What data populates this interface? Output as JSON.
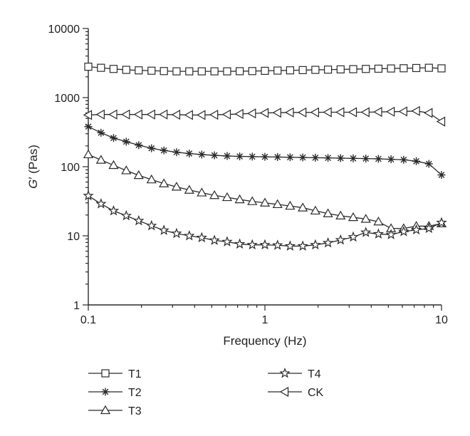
{
  "chart_data": {
    "type": "line",
    "x_scale": "log",
    "y_scale": "log",
    "xlabel": "Frequency (Hz)",
    "ylabel_main": "G",
    "ylabel_prime": "′",
    "ylabel_unit": " (Pas)",
    "xlim": [
      0.1,
      10
    ],
    "ylim": [
      1,
      10000
    ],
    "x_ticks": [
      {
        "value": 0.1,
        "label": "0.1"
      },
      {
        "value": 1,
        "label": "1"
      },
      {
        "value": 10,
        "label": "10"
      }
    ],
    "y_ticks": [
      {
        "value": 1,
        "label": "1"
      },
      {
        "value": 10,
        "label": "10"
      },
      {
        "value": 100,
        "label": "100"
      },
      {
        "value": 1000,
        "label": "1000"
      },
      {
        "value": 10000,
        "label": "10000"
      }
    ],
    "grid": false,
    "legend_position": "below",
    "x": [
      0.1,
      0.118,
      0.139,
      0.164,
      0.193,
      0.228,
      0.268,
      0.316,
      0.373,
      0.439,
      0.518,
      0.611,
      0.72,
      0.848,
      1.0,
      1.179,
      1.389,
      1.638,
      1.931,
      2.276,
      2.683,
      3.162,
      3.728,
      4.394,
      5.179,
      6.105,
      7.197,
      8.483,
      10.0
    ],
    "series": [
      {
        "name": "T1",
        "marker": "square",
        "values": [
          2800,
          2700,
          2600,
          2520,
          2480,
          2450,
          2420,
          2400,
          2400,
          2400,
          2400,
          2400,
          2410,
          2420,
          2440,
          2460,
          2480,
          2500,
          2520,
          2540,
          2560,
          2580,
          2600,
          2620,
          2640,
          2660,
          2680,
          2700,
          2650
        ]
      },
      {
        "name": "T2",
        "marker": "asterisk",
        "values": [
          380,
          310,
          260,
          230,
          205,
          185,
          172,
          162,
          155,
          150,
          146,
          143,
          141,
          140,
          139,
          138,
          137,
          136,
          135,
          134,
          133,
          132,
          131,
          130,
          128,
          126,
          120,
          110,
          76
        ]
      },
      {
        "name": "T3",
        "marker": "triangle-up",
        "values": [
          150,
          125,
          105,
          88,
          75,
          65,
          57,
          51,
          46,
          42,
          38.5,
          36,
          33.5,
          31.5,
          30,
          28.5,
          27,
          25.5,
          23,
          21,
          19.5,
          18.5,
          17.5,
          16,
          12.8,
          12.8,
          13.8,
          13.8,
          15
        ]
      },
      {
        "name": "T4",
        "marker": "star",
        "values": [
          38,
          29,
          23,
          19.5,
          16.5,
          14,
          12,
          10.8,
          10,
          9.4,
          8.6,
          8.2,
          7.6,
          7.4,
          7.4,
          7.3,
          7.1,
          7.1,
          7.4,
          7.9,
          8.7,
          9.6,
          11.2,
          10.6,
          10.4,
          11.5,
          12.2,
          12.8,
          15.5
        ]
      },
      {
        "name": "CK",
        "marker": "triangle-left",
        "values": [
          560,
          570,
          570,
          570,
          570,
          570,
          570,
          565,
          560,
          560,
          565,
          570,
          580,
          590,
          600,
          605,
          610,
          610,
          612,
          615,
          615,
          615,
          615,
          620,
          625,
          630,
          640,
          600,
          450
        ]
      }
    ]
  }
}
